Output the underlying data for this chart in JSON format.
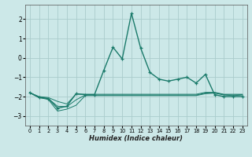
{
  "title": "",
  "xlabel": "Humidex (Indice chaleur)",
  "bg_color": "#cce8e8",
  "grid_color": "#aacccc",
  "line_color": "#1a7a6a",
  "xlim": [
    -0.5,
    23.5
  ],
  "ylim": [
    -3.5,
    2.75
  ],
  "yticks": [
    -3,
    -2,
    -1,
    0,
    1,
    2
  ],
  "xticks": [
    0,
    1,
    2,
    3,
    4,
    5,
    6,
    7,
    8,
    9,
    10,
    11,
    12,
    13,
    14,
    15,
    16,
    17,
    18,
    19,
    20,
    21,
    22,
    23
  ],
  "lines": [
    {
      "x": [
        0,
        1,
        2,
        3,
        4,
        5,
        6,
        7,
        8,
        9,
        10,
        11,
        12,
        13,
        14,
        15,
        16,
        17,
        18,
        19,
        20,
        21,
        22,
        23
      ],
      "y": [
        -1.8,
        -2.05,
        -2.1,
        -2.6,
        -2.5,
        -1.85,
        -1.9,
        -1.9,
        -0.65,
        0.55,
        -0.05,
        2.3,
        0.5,
        -0.75,
        -1.1,
        -1.2,
        -1.1,
        -1.0,
        -1.3,
        -0.85,
        -1.9,
        -2.0,
        -2.0,
        -2.0
      ],
      "marker": true,
      "lw": 1.0
    },
    {
      "x": [
        0,
        1,
        2,
        3,
        4,
        5,
        6,
        7,
        8,
        9,
        10,
        11,
        12,
        13,
        14,
        15,
        16,
        17,
        18,
        19,
        20,
        21,
        22,
        23
      ],
      "y": [
        -1.8,
        -2.05,
        -2.15,
        -2.75,
        -2.65,
        -2.45,
        -1.95,
        -1.95,
        -1.95,
        -1.95,
        -1.95,
        -1.95,
        -1.95,
        -1.95,
        -1.95,
        -1.95,
        -1.95,
        -1.95,
        -1.95,
        -1.85,
        -1.82,
        -1.92,
        -1.95,
        -1.92
      ],
      "marker": false,
      "lw": 0.7
    },
    {
      "x": [
        0,
        1,
        2,
        3,
        4,
        5,
        6,
        7,
        8,
        9,
        10,
        11,
        12,
        13,
        14,
        15,
        16,
        17,
        18,
        19,
        20,
        21,
        22,
        23
      ],
      "y": [
        -1.8,
        -2.0,
        -2.05,
        -2.25,
        -2.38,
        -1.88,
        -1.88,
        -1.88,
        -1.88,
        -1.88,
        -1.88,
        -1.88,
        -1.88,
        -1.88,
        -1.88,
        -1.88,
        -1.88,
        -1.88,
        -1.88,
        -1.78,
        -1.78,
        -1.88,
        -1.88,
        -1.88
      ],
      "marker": false,
      "lw": 0.7
    },
    {
      "x": [
        0,
        1,
        2,
        3,
        4,
        5,
        6,
        7,
        8,
        9,
        10,
        11,
        12,
        13,
        14,
        15,
        16,
        17,
        18,
        19,
        20,
        21,
        22,
        23
      ],
      "y": [
        -1.8,
        -2.02,
        -2.1,
        -2.5,
        -2.52,
        -2.17,
        -1.92,
        -1.92,
        -1.92,
        -1.92,
        -1.92,
        -1.92,
        -1.92,
        -1.92,
        -1.92,
        -1.92,
        -1.92,
        -1.92,
        -1.92,
        -1.82,
        -1.8,
        -1.9,
        -1.92,
        -1.9
      ],
      "marker": false,
      "lw": 0.7
    }
  ]
}
